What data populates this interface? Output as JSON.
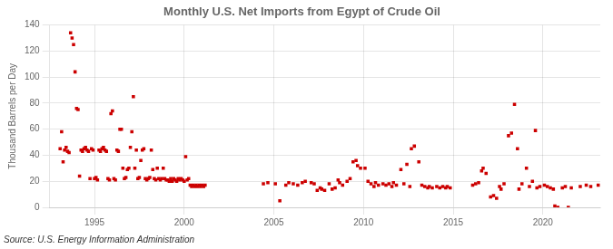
{
  "chart_data": {
    "type": "scatter",
    "title": "Monthly U.S. Net Imports from Egypt of Crude Oil",
    "ylabel": "Thousand Barrels per Day",
    "annotations": [
      "Source: U.S. Energy Information Administration"
    ],
    "color": "#cc0000",
    "marker": "square",
    "grid": true,
    "xlim": [
      1992.5,
      2023.2
    ],
    "ylim": [
      0,
      140
    ],
    "yticks": [
      0,
      20,
      40,
      60,
      80,
      100,
      120,
      140
    ],
    "xticks": [
      1995,
      2000,
      2005,
      2010,
      2015,
      2020
    ],
    "x": [
      1993.083,
      1993.167,
      1993.25,
      1993.333,
      1993.417,
      1993.5,
      1993.583,
      1993.667,
      1993.75,
      1993.833,
      1993.917,
      1994.0,
      1994.083,
      1994.167,
      1994.25,
      1994.333,
      1994.417,
      1994.5,
      1994.583,
      1994.667,
      1994.75,
      1994.833,
      1994.917,
      1995.0,
      1995.083,
      1995.167,
      1995.25,
      1995.333,
      1995.417,
      1995.5,
      1995.583,
      1995.667,
      1995.75,
      1995.833,
      1995.917,
      1996.0,
      1996.083,
      1996.167,
      1996.25,
      1996.333,
      1996.417,
      1996.5,
      1996.583,
      1996.667,
      1996.75,
      1996.833,
      1996.917,
      1997.0,
      1997.083,
      1997.167,
      1997.25,
      1997.333,
      1997.417,
      1997.5,
      1997.583,
      1997.667,
      1997.75,
      1997.833,
      1997.917,
      1998.0,
      1998.083,
      1998.167,
      1998.25,
      1998.333,
      1998.417,
      1998.5,
      1998.583,
      1998.667,
      1998.75,
      1998.833,
      1998.917,
      1999.0,
      1999.083,
      1999.167,
      1999.25,
      1999.333,
      1999.417,
      1999.5,
      1999.583,
      1999.667,
      1999.75,
      1999.833,
      1999.917,
      2000.0,
      2000.083,
      2000.167,
      2000.25,
      2000.333,
      2000.417,
      2000.5,
      2000.583,
      2000.667,
      2000.75,
      2000.833,
      2000.917,
      2001.0,
      2001.083,
      2001.167,
      2004.417,
      2004.667,
      2005.083,
      2005.333,
      2005.667,
      2005.833,
      2006.083,
      2006.333,
      2006.583,
      2006.75,
      2007.083,
      2007.25,
      2007.417,
      2007.583,
      2007.667,
      2007.833,
      2008.083,
      2008.25,
      2008.417,
      2008.583,
      2008.667,
      2008.833,
      2009.083,
      2009.25,
      2009.417,
      2009.583,
      2009.667,
      2009.833,
      2010.083,
      2010.25,
      2010.417,
      2010.583,
      2010.667,
      2010.833,
      2011.083,
      2011.25,
      2011.417,
      2011.583,
      2011.667,
      2011.833,
      2012.083,
      2012.25,
      2012.417,
      2012.583,
      2012.667,
      2012.833,
      2013.083,
      2013.25,
      2013.417,
      2013.583,
      2013.667,
      2013.833,
      2014.083,
      2014.25,
      2014.417,
      2014.583,
      2014.667,
      2014.833,
      2016.083,
      2016.25,
      2016.417,
      2016.583,
      2016.667,
      2016.833,
      2017.083,
      2017.25,
      2017.417,
      2017.583,
      2017.667,
      2017.833,
      2018.083,
      2018.25,
      2018.417,
      2018.583,
      2018.667,
      2018.833,
      2019.083,
      2019.25,
      2019.417,
      2019.583,
      2019.667,
      2019.833,
      2020.083,
      2020.25,
      2020.417,
      2020.583,
      2020.667,
      2020.833,
      2021.083,
      2021.25,
      2021.417,
      2021.583,
      2022.083,
      2022.417,
      2022.667,
      2023.083
    ],
    "values": [
      45,
      58,
      35,
      44,
      46,
      43,
      42,
      134,
      130,
      125,
      104,
      76,
      75,
      24,
      44,
      43,
      45,
      46,
      44,
      43,
      22,
      45,
      44,
      22,
      23,
      21,
      44,
      43,
      45,
      46,
      44,
      43,
      22,
      21,
      72,
      74,
      22,
      21,
      44,
      43,
      60,
      60,
      30,
      22,
      23,
      29,
      30,
      46,
      58,
      85,
      30,
      44,
      22,
      23,
      36,
      44,
      45,
      22,
      21,
      22,
      23,
      44,
      29,
      22,
      21,
      30,
      22,
      21,
      22,
      30,
      22,
      21,
      21,
      20,
      22,
      20,
      22,
      21,
      20,
      22,
      21,
      22,
      21,
      20,
      39,
      21,
      22,
      17,
      16,
      17,
      16,
      17,
      16,
      17,
      16,
      17,
      16,
      17,
      18,
      19,
      18,
      5,
      17,
      19,
      18,
      17,
      19,
      20,
      19,
      18,
      13,
      15,
      14,
      13,
      18,
      14,
      15,
      21,
      19,
      17,
      20,
      22,
      35,
      36,
      32,
      30,
      30,
      20,
      18,
      16,
      19,
      17,
      18,
      17,
      18,
      16,
      19,
      17,
      29,
      18,
      33,
      16,
      45,
      47,
      35,
      17,
      16,
      15,
      16,
      15,
      16,
      15,
      16,
      15,
      16,
      15,
      17,
      18,
      19,
      28,
      30,
      26,
      8,
      9,
      7,
      16,
      14,
      18,
      55,
      57,
      79,
      45,
      14,
      18,
      30,
      16,
      20,
      59,
      15,
      16,
      17,
      16,
      15,
      14,
      1,
      0,
      15,
      16,
      0,
      15,
      16,
      17,
      16,
      17
    ]
  }
}
